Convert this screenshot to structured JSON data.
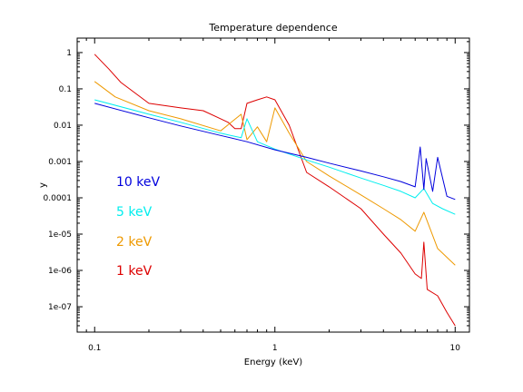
{
  "chart_data": {
    "type": "line",
    "title": "Temperature dependence",
    "xlabel": "Energy (keV)",
    "ylabel": "y",
    "xscale": "log",
    "yscale": "log",
    "xlim": [
      0.08,
      12
    ],
    "ylim": [
      2e-08,
      2.5
    ],
    "grid": false,
    "legend_placement": "center-left",
    "xticks": [
      {
        "value": 0.1,
        "label": "0.1"
      },
      {
        "value": 1,
        "label": "1"
      },
      {
        "value": 10,
        "label": "10"
      }
    ],
    "yticks": [
      {
        "value": 1e-07,
        "label": "1e-07"
      },
      {
        "value": 1e-06,
        "label": "1e-06"
      },
      {
        "value": 1e-05,
        "label": "1e-05"
      },
      {
        "value": 0.0001,
        "label": "0.0001"
      },
      {
        "value": 0.001,
        "label": "0.001"
      },
      {
        "value": 0.01,
        "label": "0.01"
      },
      {
        "value": 0.1,
        "label": "0.1"
      },
      {
        "value": 1,
        "label": "1"
      }
    ],
    "series": [
      {
        "name": "10 keV",
        "color": "#0000dd",
        "x": [
          0.1,
          0.2,
          0.3,
          0.5,
          0.7,
          1.0,
          1.5,
          2.0,
          3.0,
          4.0,
          5.0,
          6.0,
          6.4,
          6.7,
          6.9,
          7.5,
          8.0,
          9.0,
          10.0
        ],
        "y": [
          0.04,
          0.016,
          0.0095,
          0.0052,
          0.0035,
          0.0021,
          0.0013,
          0.0009,
          0.00055,
          0.00038,
          0.00028,
          0.0002,
          0.0025,
          0.00017,
          0.0012,
          0.00015,
          0.0013,
          0.00011,
          9e-05
        ]
      },
      {
        "name": "5 keV",
        "color": "#00eeee",
        "x": [
          0.1,
          0.2,
          0.3,
          0.5,
          0.65,
          0.7,
          0.8,
          1.0,
          1.5,
          2.0,
          3.0,
          4.0,
          5.0,
          6.0,
          6.7,
          7.5,
          8.5,
          10.0
        ],
        "y": [
          0.05,
          0.02,
          0.012,
          0.006,
          0.0045,
          0.015,
          0.0035,
          0.0022,
          0.0011,
          0.0007,
          0.00035,
          0.00022,
          0.00015,
          0.0001,
          0.00018,
          7e-05,
          5e-05,
          3.5e-05
        ]
      },
      {
        "name": "2 keV",
        "color": "#ee9900",
        "x": [
          0.1,
          0.13,
          0.2,
          0.3,
          0.5,
          0.65,
          0.7,
          0.8,
          0.9,
          1.0,
          1.2,
          1.5,
          2.0,
          3.0,
          4.0,
          5.0,
          6.0,
          6.7,
          8.0,
          10.0
        ],
        "y": [
          0.16,
          0.06,
          0.025,
          0.015,
          0.007,
          0.02,
          0.004,
          0.009,
          0.0035,
          0.03,
          0.006,
          0.001,
          0.0004,
          0.00012,
          5e-05,
          2.5e-05,
          1.2e-05,
          4e-05,
          4e-06,
          1.4e-06
        ]
      },
      {
        "name": "1 keV",
        "color": "#dd0000",
        "x": [
          0.1,
          0.12,
          0.14,
          0.2,
          0.3,
          0.4,
          0.5,
          0.55,
          0.6,
          0.65,
          0.7,
          0.8,
          0.9,
          1.0,
          1.2,
          1.5,
          2.0,
          3.0,
          4.0,
          5.0,
          6.0,
          6.5,
          6.7,
          7.0,
          8.0,
          9.0,
          10.0
        ],
        "y": [
          0.9,
          0.35,
          0.15,
          0.04,
          0.03,
          0.025,
          0.015,
          0.012,
          0.008,
          0.008,
          0.04,
          0.05,
          0.06,
          0.05,
          0.01,
          0.0005,
          0.0002,
          5e-05,
          1e-05,
          3e-06,
          8e-07,
          6e-07,
          6e-06,
          3e-07,
          2e-07,
          7e-08,
          3e-08
        ]
      }
    ]
  }
}
